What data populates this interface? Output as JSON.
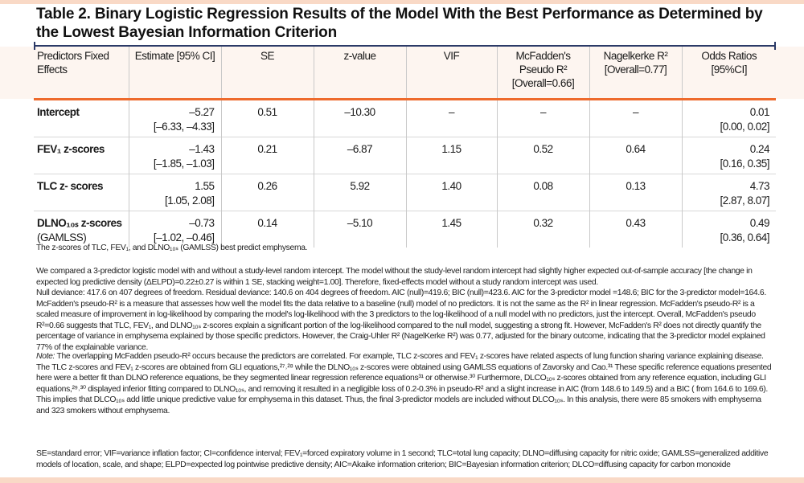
{
  "title": "Table 2. Binary Logistic Regression Results of the Model With the Best Performance as Determined by the Lowest Bayesian Information Criterion",
  "headers": [
    "Predictors Fixed Effects",
    "Estimate [95% CI]",
    "SE",
    "z-value",
    "VIF",
    "McFadden's Pseudo R² [Overall=0.66]",
    "Nagelkerke R² [Overall=0.77]",
    "Odds Ratios [95%CI]"
  ],
  "rows": [
    {
      "predictor": "Intercept",
      "predictor_note": "",
      "estimate": "–5.27",
      "ci": "[–6.33, –4.33]",
      "se": "0.51",
      "z": "–10.30",
      "vif": "–",
      "mcfadden": "–",
      "nagelkerke": "–",
      "or": "0.01",
      "or_ci": "[0.00, 0.02]"
    },
    {
      "predictor": "FEV₁ z-scores",
      "predictor_note": "",
      "estimate": "–1.43",
      "ci": "[–1.85, –1.03]",
      "se": "0.21",
      "z": "–6.87",
      "vif": "1.15",
      "mcfadden": "0.52",
      "nagelkerke": "0.64",
      "or": "0.24",
      "or_ci": "[0.16, 0.35]"
    },
    {
      "predictor": "TLC z- scores",
      "predictor_note": "",
      "estimate": "1.55",
      "ci": "[1.05, 2.08]",
      "se": "0.26",
      "z": "5.92",
      "vif": "1.40",
      "mcfadden": "0.08",
      "nagelkerke": "0.13",
      "or": "4.73",
      "or_ci": "[2.87, 8.07]"
    },
    {
      "predictor": "DLNO₁₀ₛ z-scores",
      "predictor_note": "(GAMLSS)",
      "estimate": "–0.73",
      "ci": "[–1.02, –0.46]",
      "se": "0.14",
      "z": "–5.10",
      "vif": "1.45",
      "mcfadden": "0.32",
      "nagelkerke": "0.43",
      "or": "0.49",
      "or_ci": "[0.36, 0.64]"
    }
  ],
  "footnote": "The z-scores of TLC, FEV₁, and DLNO₁₀ₛ (GAMLSS) best predict emphysema.",
  "paragraph1": "We compared a 3-predictor logistic model with and without a study-level random intercept. The model without the study-level random intercept had slightly higher expected out-of-sample accuracy [the change in expected log predictive density (ΔELPD)=0.22±0.27 is within 1 SE, stacking weight=1.00]. Therefore, fixed-effects model without a study random intercept was used.",
  "paragraph2": "Null deviance: 417.6 on 407 degrees of freedom. Residual deviance: 140.6 on 404 degrees of freedom. AIC (null)=419.6; BIC (null)=423.6. AIC for the 3-predictor model =148.6; BIC for the 3-predictor model=164.6. McFadden's pseudo-R² is a measure that assesses how well the model fits the data relative to a baseline (null) model of no predictors. It is not the same as the R² in linear regression. McFadden's pseudo-R² is a scaled measure of improvement in log-likelihood by comparing the model's log-likelihood with the 3 predictors to the log-likelihood of a null model with no predictors, just the intercept. Overall, McFadden's pseudo R²=0.66 suggests that TLC, FEV₁, and DLNO₁₀ₛ z-scores explain a significant portion of the log-likelihood compared to the null model, suggesting a strong fit. However, McFadden's R² does not directly quantify the percentage of variance in emphysema explained by those specific predictors. However, the Craig-Uhler R² (NagelKerke R²) was 0.77, adjusted for the binary outcome, indicating that the 3-predictor model explained 77% of the explainable variance.",
  "note_label": "Note:",
  "note_text": " The overlapping McFadden pseudo-R² occurs because the predictors are correlated. For example, TLC z-scores and FEV₁ z-scores have related aspects of lung function sharing variance explaining disease. The TLC z-scores and FEV₁ z-scores are obtained from GLI equations,²⁷˒²⁸ while the DLNO₁₀ₛ z-scores were obtained using GAMLSS equations of Zavorsky and Cao.³¹ These specific reference equations presented here were a better fit than DLNO reference equations, be they segmented linear regression reference equations³¹ or otherwise.³⁰ Furthermore, DLCO₁₀ₛ z-scores obtained from any reference equation, including GLI equations,²⁹˒³⁰ displayed inferior fitting compared to DLNO₁₀ₛ, and removing it resulted in a negligible loss of 0.2-0.3% in pseudo-R² and a slight increase in AIC (from 148.6 to 149.5) and a BIC ( from 164.6 to 169.6). This implies that DLCO₁₀ₛ add little unique predictive value for emphysema in this dataset. Thus, the final 3-predictor models are included without DLCO₁₀ₛ. In this analysis, there were 85 smokers with emphysema and 323 smokers without emphysema.",
  "abbreviations": "SE=standard error; VIF=variance inflation factor; CI=confidence interval; FEV₁=forced expiratory volume in 1 second; TLC=total lung capacity; DLNO=diffusing capacity for nitric oxide; GAMLSS=generalized additive models of location, scale, and shape; ELPD=expected log pointwise predictive density; AIC=Akaike information criterion; BIC=Bayesian information criterion; DLCO=diffusing capacity for carbon monoxide",
  "colors": {
    "accent_orange": "#ee6a2c",
    "rule_blue": "#2b3a67",
    "band": "#f9d9c6"
  }
}
